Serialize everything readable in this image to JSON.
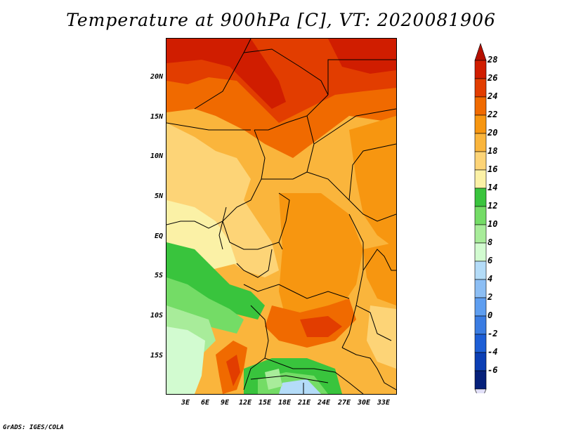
{
  "title": "Temperature at 900hPa [C], VT: 2020081906",
  "credit": "GrADS: IGES/COLA",
  "latitude_labels": [
    "20N",
    "15N",
    "10N",
    "5N",
    "EQ",
    "5S",
    "10S",
    "15S"
  ],
  "longitude_labels": [
    "3E",
    "6E",
    "9E",
    "12E",
    "15E",
    "18E",
    "21E",
    "24E",
    "27E",
    "30E",
    "33E"
  ],
  "colorbar": {
    "labels": [
      "28",
      "26",
      "24",
      "22",
      "20",
      "18",
      "16",
      "14",
      "12",
      "10",
      "8",
      "6",
      "4",
      "2",
      "0",
      "-2",
      "-4",
      "-6"
    ],
    "colors": [
      "#d01d00",
      "#e23d00",
      "#f06a00",
      "#f79610",
      "#fab53c",
      "#fdd477",
      "#fbf1a6",
      "#39c43d",
      "#74dc66",
      "#a8ec9a",
      "#d2fbd0",
      "#b4dcf8",
      "#8cbef4",
      "#5e9ef0",
      "#3a7ce2",
      "#1d5ed6",
      "#0b3eb4",
      "#05207a"
    ],
    "top_arrow_color": "#b50f00",
    "bottom_arrow_color": "#e2e0f8"
  }
}
